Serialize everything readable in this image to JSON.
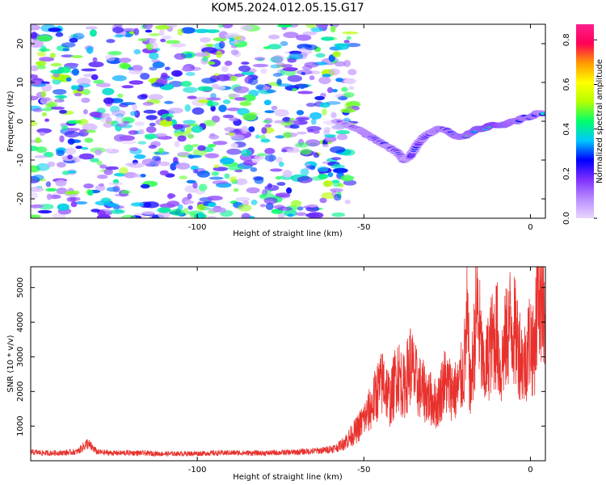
{
  "title": "KOM5.2024.012.05.15.G17",
  "chart_data": [
    {
      "type": "heatmap",
      "xlabel": "Height of straight line (km)",
      "ylabel": "Frequency (Hz)",
      "xlim": [
        -150,
        4.5
      ],
      "ylim": [
        -25,
        25
      ],
      "x_ticks": [
        -100,
        -50,
        0
      ],
      "y_ticks": [
        -20,
        -10,
        0,
        10,
        20
      ],
      "colorbar": {
        "label": "Normalized spectral amplitude",
        "range": [
          0,
          0.87
        ],
        "ticks": [
          0.0,
          0.2,
          0.4,
          0.6,
          0.8
        ],
        "colors": [
          "#e8d6ff",
          "#b98cff",
          "#7f2fff",
          "#0000ff",
          "#00c8ff",
          "#00ff6a",
          "#b4ff00",
          "#ffff00",
          "#ff9a00",
          "#ff0055",
          "#ff1f8f"
        ]
      },
      "noise_region": {
        "x_range": [
          -150,
          -55
        ],
        "y_range": [
          -25,
          25
        ],
        "amplitude": 0.15
      },
      "signal_track": {
        "x": [
          -58,
          -55,
          -52,
          -50,
          -48,
          -46,
          -44,
          -42,
          -40,
          -38,
          -36,
          -34,
          -32,
          -30,
          -28,
          -26,
          -24,
          -22,
          -20,
          -18,
          -16,
          -14,
          -12,
          -10,
          -8,
          -6,
          -4,
          -2,
          0,
          2,
          4
        ],
        "frequency": [
          0,
          -1,
          -2,
          -3,
          -4,
          -5,
          -6,
          -7,
          -8,
          -10,
          -9,
          -6,
          -4,
          -3,
          -2,
          -2,
          -3,
          -4,
          -4,
          -3,
          -2,
          -2,
          -1,
          -1,
          -1,
          0,
          0,
          1,
          1,
          2,
          2
        ],
        "amplitude": [
          0.2,
          0.28,
          0.35,
          0.4,
          0.42,
          0.42,
          0.4,
          0.38,
          0.35,
          0.3,
          0.3,
          0.32,
          0.35,
          0.38,
          0.42,
          0.45,
          0.48,
          0.5,
          0.52,
          0.55,
          0.6,
          0.65,
          0.72,
          0.7,
          0.6,
          0.55,
          0.5,
          0.48,
          0.5,
          0.45,
          0.4
        ]
      }
    },
    {
      "type": "line",
      "xlabel": "Height of straight line (km)",
      "ylabel": "SNR (10 * v/v)",
      "xlim": [
        -150,
        4.5
      ],
      "ylim": [
        0,
        5600
      ],
      "x_ticks": [
        -100,
        -50,
        0
      ],
      "y_ticks": [
        1000,
        2000,
        3000,
        4000,
        5000
      ],
      "color": "#e8312d",
      "series": [
        {
          "x": [
            -150,
            -145,
            -140,
            -136,
            -133,
            -130,
            -125,
            -120,
            -110,
            -100,
            -90,
            -80,
            -70,
            -62,
            -58,
            -55,
            -52,
            -50,
            -48,
            -46,
            -44,
            -42,
            -40,
            -38,
            -36,
            -34,
            -32,
            -30,
            -28,
            -26,
            -24,
            -22,
            -20,
            -19,
            -18,
            -17,
            -16,
            -14,
            -12,
            -10,
            -9,
            -8,
            -6,
            -4,
            -2,
            0,
            1,
            2,
            2.5,
            3,
            3.5,
            4,
            4.5
          ],
          "y": [
            250,
            220,
            230,
            260,
            500,
            250,
            220,
            230,
            200,
            210,
            230,
            220,
            250,
            300,
            380,
            600,
            900,
            1200,
            1500,
            2000,
            2300,
            1700,
            2600,
            2100,
            2800,
            2200,
            2000,
            1800,
            1600,
            2300,
            2100,
            2000,
            2600,
            4000,
            2000,
            3200,
            4500,
            2400,
            3300,
            3700,
            2500,
            3200,
            4000,
            3500,
            2700,
            3600,
            3000,
            4500,
            5600,
            4400,
            5500,
            4400,
            3200
          ]
        }
      ]
    }
  ]
}
